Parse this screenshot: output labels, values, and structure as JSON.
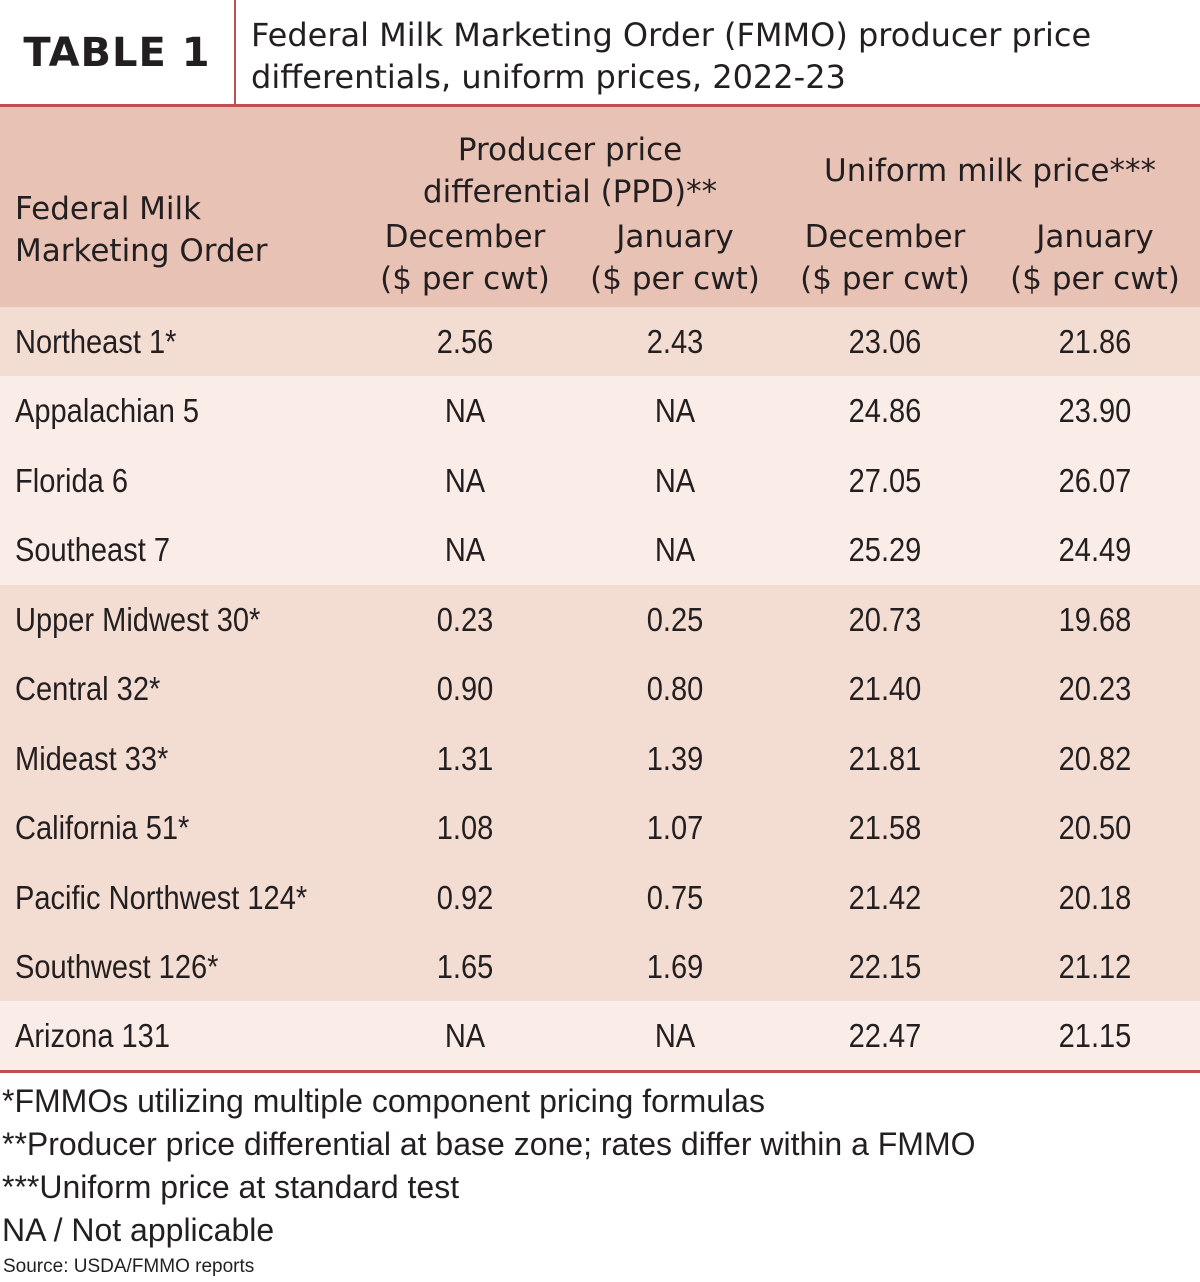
{
  "header": {
    "label": "TABLE 1",
    "title_line1": "Federal Milk Marketing Order (FMMO) producer price",
    "title_line2": "differentials, uniform prices, 2022-23"
  },
  "columns": {
    "order_line1": "Federal Milk",
    "order_line2": "Marketing Order",
    "group1_line1": "Producer price",
    "group1_line2": "differential (PPD)**",
    "group2": "Uniform milk price***",
    "sub": [
      {
        "month": "December",
        "unit": "($ per cwt)"
      },
      {
        "month": "January",
        "unit": "($ per cwt)"
      },
      {
        "month": "December",
        "unit": "($ per cwt)"
      },
      {
        "month": "January",
        "unit": "($ per cwt)"
      }
    ]
  },
  "rows": [
    {
      "name": "Northeast 1*",
      "ppd_dec": "2.56",
      "ppd_jan": "2.43",
      "uni_dec": "23.06",
      "uni_jan": "21.86"
    },
    {
      "name": "Appalachian 5",
      "ppd_dec": "NA",
      "ppd_jan": "NA",
      "uni_dec": "24.86",
      "uni_jan": "23.90"
    },
    {
      "name": "Florida 6",
      "ppd_dec": "NA",
      "ppd_jan": "NA",
      "uni_dec": "27.05",
      "uni_jan": "26.07"
    },
    {
      "name": "Southeast 7",
      "ppd_dec": "NA",
      "ppd_jan": "NA",
      "uni_dec": "25.29",
      "uni_jan": "24.49"
    },
    {
      "name": "Upper Midwest 30*",
      "ppd_dec": "0.23",
      "ppd_jan": "0.25",
      "uni_dec": "20.73",
      "uni_jan": "19.68"
    },
    {
      "name": "Central 32*",
      "ppd_dec": "0.90",
      "ppd_jan": "0.80",
      "uni_dec": "21.40",
      "uni_jan": "20.23"
    },
    {
      "name": "Mideast 33*",
      "ppd_dec": "1.31",
      "ppd_jan": "1.39",
      "uni_dec": "21.81",
      "uni_jan": "20.82"
    },
    {
      "name": "California 51*",
      "ppd_dec": "1.08",
      "ppd_jan": "1.07",
      "uni_dec": "21.58",
      "uni_jan": "20.50"
    },
    {
      "name": "Pacific Northwest 124*",
      "ppd_dec": "0.92",
      "ppd_jan": "0.75",
      "uni_dec": "21.42",
      "uni_jan": "20.18"
    },
    {
      "name": "Southwest 126*",
      "ppd_dec": "1.65",
      "ppd_jan": "1.69",
      "uni_dec": "22.15",
      "uni_jan": "21.12"
    },
    {
      "name": "Arizona 131",
      "ppd_dec": "NA",
      "ppd_jan": "NA",
      "uni_dec": "22.47",
      "uni_jan": "21.15"
    }
  ],
  "footnotes": [
    "*FMMOs utilizing multiple component pricing formulas",
    "**Producer price differential at base zone; rates differ within a FMMO",
    "***Uniform price at standard test",
    "NA / Not applicable"
  ],
  "source": "Source: USDA/FMMO reports",
  "colors": {
    "accent_line": "#c0504d",
    "header_fill": "#e8c3b5",
    "row_dark": "#f3dcd2",
    "row_light": "#faede7"
  }
}
